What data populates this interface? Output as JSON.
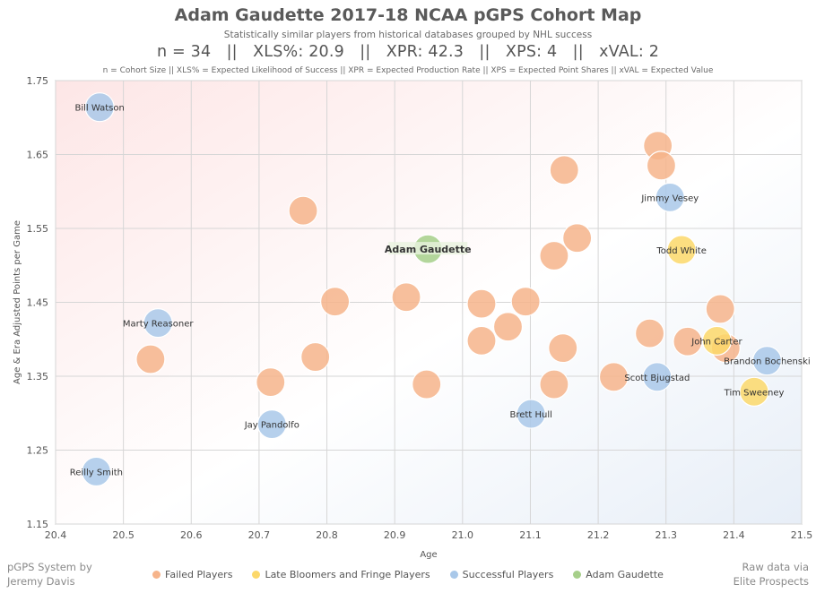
{
  "header": {
    "title": "Adam Gaudette 2017-18 NCAA pGPS Cohort Map",
    "subtitle": "Statistically similar players from historical databases grouped by NHL success",
    "stats": "n = 34   ||   XLS%: 20.9   ||   XPR: 42.3   ||   XPS: 4   ||   xVAL: 2",
    "note": "n = Cohort Size || XLS% = Expected Likelihood of Success || XPR = Expected Production Rate || XPS = Expected Point Shares || xVAL = Expected Value"
  },
  "footer": {
    "left_line1": "pGPS System by",
    "left_line2": "Jeremy Davis",
    "right_line1": "Raw data via",
    "right_line2": "Elite Prospects"
  },
  "colors": {
    "failed": "#f6b48b",
    "late": "#fcd86a",
    "successful": "#a9c8e9",
    "target": "#a6cf8a"
  },
  "chart_data": {
    "type": "scatter",
    "title": "Adam Gaudette 2017-18 NCAA pGPS Cohort Map",
    "xlabel": "Age",
    "ylabel": "Age & Era Adjusted Points per Game",
    "xlim": [
      20.4,
      21.5
    ],
    "ylim": [
      1.15,
      1.75
    ],
    "xticks": [
      "20.4",
      "20.5",
      "20.6",
      "20.7",
      "20.8",
      "20.9",
      "21.0",
      "21.1",
      "21.2",
      "21.3",
      "21.4",
      "21.5"
    ],
    "yticks": [
      "1.15",
      "1.25",
      "1.35",
      "1.45",
      "1.55",
      "1.65",
      "1.75"
    ],
    "grid": true,
    "legend_position": "bottom",
    "series": [
      {
        "name": "Failed Players",
        "key": "failed",
        "points": [
          {
            "x": 20.54,
            "y": 1.373
          },
          {
            "x": 20.717,
            "y": 1.342
          },
          {
            "x": 20.765,
            "y": 1.574
          },
          {
            "x": 20.783,
            "y": 1.376
          },
          {
            "x": 20.812,
            "y": 1.451
          },
          {
            "x": 20.917,
            "y": 1.457
          },
          {
            "x": 20.947,
            "y": 1.339
          },
          {
            "x": 21.028,
            "y": 1.448
          },
          {
            "x": 21.028,
            "y": 1.398
          },
          {
            "x": 21.067,
            "y": 1.417
          },
          {
            "x": 21.093,
            "y": 1.451
          },
          {
            "x": 21.135,
            "y": 1.513
          },
          {
            "x": 21.135,
            "y": 1.339
          },
          {
            "x": 21.148,
            "y": 1.388
          },
          {
            "x": 21.15,
            "y": 1.629
          },
          {
            "x": 21.169,
            "y": 1.537
          },
          {
            "x": 21.223,
            "y": 1.349
          },
          {
            "x": 21.276,
            "y": 1.408
          },
          {
            "x": 21.288,
            "y": 1.662
          },
          {
            "x": 21.293,
            "y": 1.635
          },
          {
            "x": 21.332,
            "y": 1.397
          },
          {
            "x": 21.38,
            "y": 1.441
          },
          {
            "x": 21.388,
            "y": 1.388
          }
        ]
      },
      {
        "name": "Late Bloomers and Fringe Players",
        "key": "late",
        "points": [
          {
            "x": 21.323,
            "y": 1.521,
            "label": "Todd White"
          },
          {
            "x": 21.375,
            "y": 1.398,
            "label": "John Carter"
          },
          {
            "x": 21.43,
            "y": 1.329,
            "label": "Tim Sweeney"
          }
        ]
      },
      {
        "name": "Successful Players",
        "key": "successful",
        "points": [
          {
            "x": 20.465,
            "y": 1.714,
            "label": "Bill Watson"
          },
          {
            "x": 20.551,
            "y": 1.422,
            "label": "Marty Reasoner"
          },
          {
            "x": 20.719,
            "y": 1.285,
            "label": "Jay Pandolfo"
          },
          {
            "x": 20.46,
            "y": 1.221,
            "label": "Reilly Smith"
          },
          {
            "x": 21.101,
            "y": 1.299,
            "label": "Brett Hull"
          },
          {
            "x": 21.287,
            "y": 1.349,
            "label": "Scott Bjugstad"
          },
          {
            "x": 21.306,
            "y": 1.592,
            "label": "Jimmy Vesey"
          },
          {
            "x": 21.449,
            "y": 1.371,
            "label": "Brandon Bochenski"
          }
        ]
      },
      {
        "name": "Adam Gaudette",
        "key": "target",
        "points": [
          {
            "x": 20.949,
            "y": 1.522,
            "label": "Adam Gaudette"
          }
        ]
      }
    ]
  }
}
